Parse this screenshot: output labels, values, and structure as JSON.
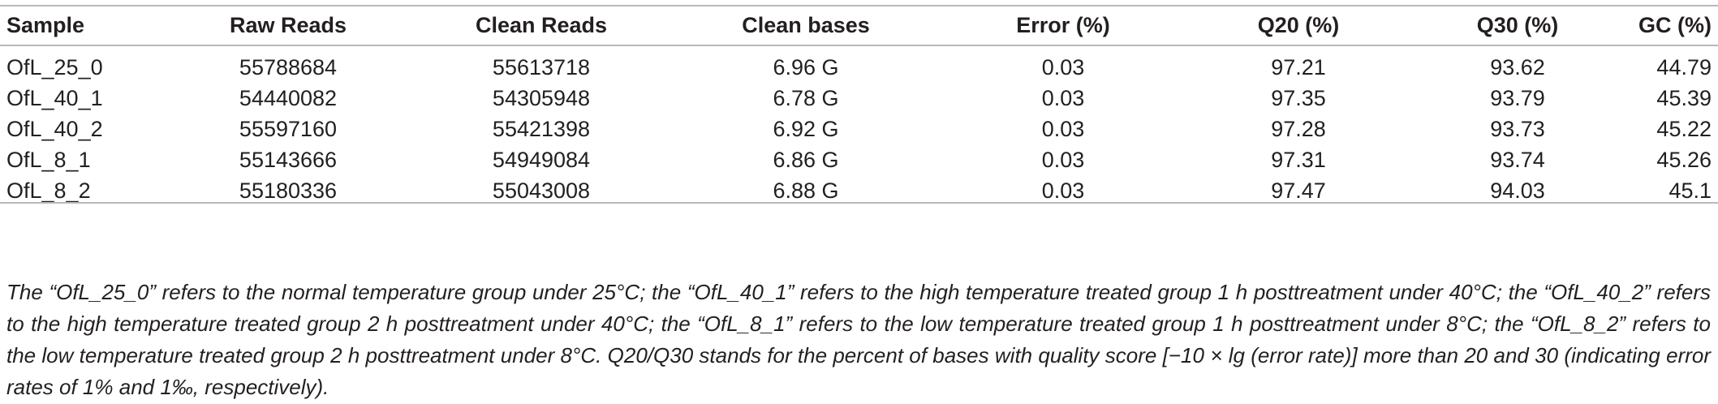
{
  "table": {
    "headers": [
      "Sample",
      "Raw Reads",
      "Clean Reads",
      "Clean bases",
      "Error (%)",
      "Q20 (%)",
      "Q30 (%)",
      "GC (%)"
    ],
    "rows": [
      [
        "OfL_25_0",
        "55788684",
        "55613718",
        "6.96 G",
        "0.03",
        "97.21",
        "93.62",
        "44.79"
      ],
      [
        "OfL_40_1",
        "54440082",
        "54305948",
        "6.78 G",
        "0.03",
        "97.35",
        "93.79",
        "45.39"
      ],
      [
        "OfL_40_2",
        "55597160",
        "55421398",
        "6.92 G",
        "0.03",
        "97.28",
        "93.73",
        "45.22"
      ],
      [
        "OfL_8_1",
        "55143666",
        "54949084",
        "6.86 G",
        "0.03",
        "97.31",
        "93.74",
        "45.26"
      ],
      [
        "OfL_8_2",
        "55180336",
        "55043008",
        "6.88 G",
        "0.03",
        "97.47",
        "94.03",
        "45.1"
      ]
    ]
  },
  "footnote": "The “OfL_25_0” refers to the normal temperature group under 25°C; the “OfL_40_1” refers to the high temperature treated group 1 h posttreatment under 40°C; the “OfL_40_2” refers to the high temperature treated group 2 h posttreatment under 40°C; the “OfL_8_1” refers to the low temperature treated group 1 h posttreatment under 8°C; the “OfL_8_2” refers to the low temperature treated group 2 h posttreatment under 8°C. Q20/Q30 stands for the percent of bases with quality score [−10 × lg (error rate)] more than 20 and 30 (indicating error rates of 1% and 1‰, respectively)."
}
